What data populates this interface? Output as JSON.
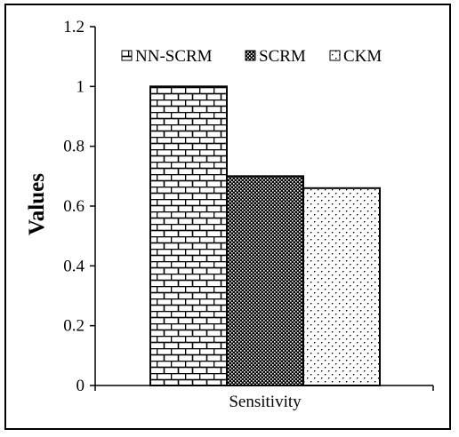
{
  "chart_data": {
    "type": "bar",
    "categories": [
      "Sensitivity"
    ],
    "series": [
      {
        "name": "NN-SCRM",
        "values": [
          1.0
        ],
        "pattern": "brick"
      },
      {
        "name": "SCRM",
        "values": [
          0.7
        ],
        "pattern": "dense-dots"
      },
      {
        "name": "CKM",
        "values": [
          0.66
        ],
        "pattern": "sparse-dots"
      }
    ],
    "title": "",
    "xlabel": "",
    "ylabel": "Values",
    "ylim": [
      0,
      1.2
    ],
    "yticks": [
      "0",
      "0.2",
      "0.4",
      "0.6",
      "0.8",
      "1",
      "1.2"
    ],
    "legend_position": "top",
    "grid": false
  }
}
